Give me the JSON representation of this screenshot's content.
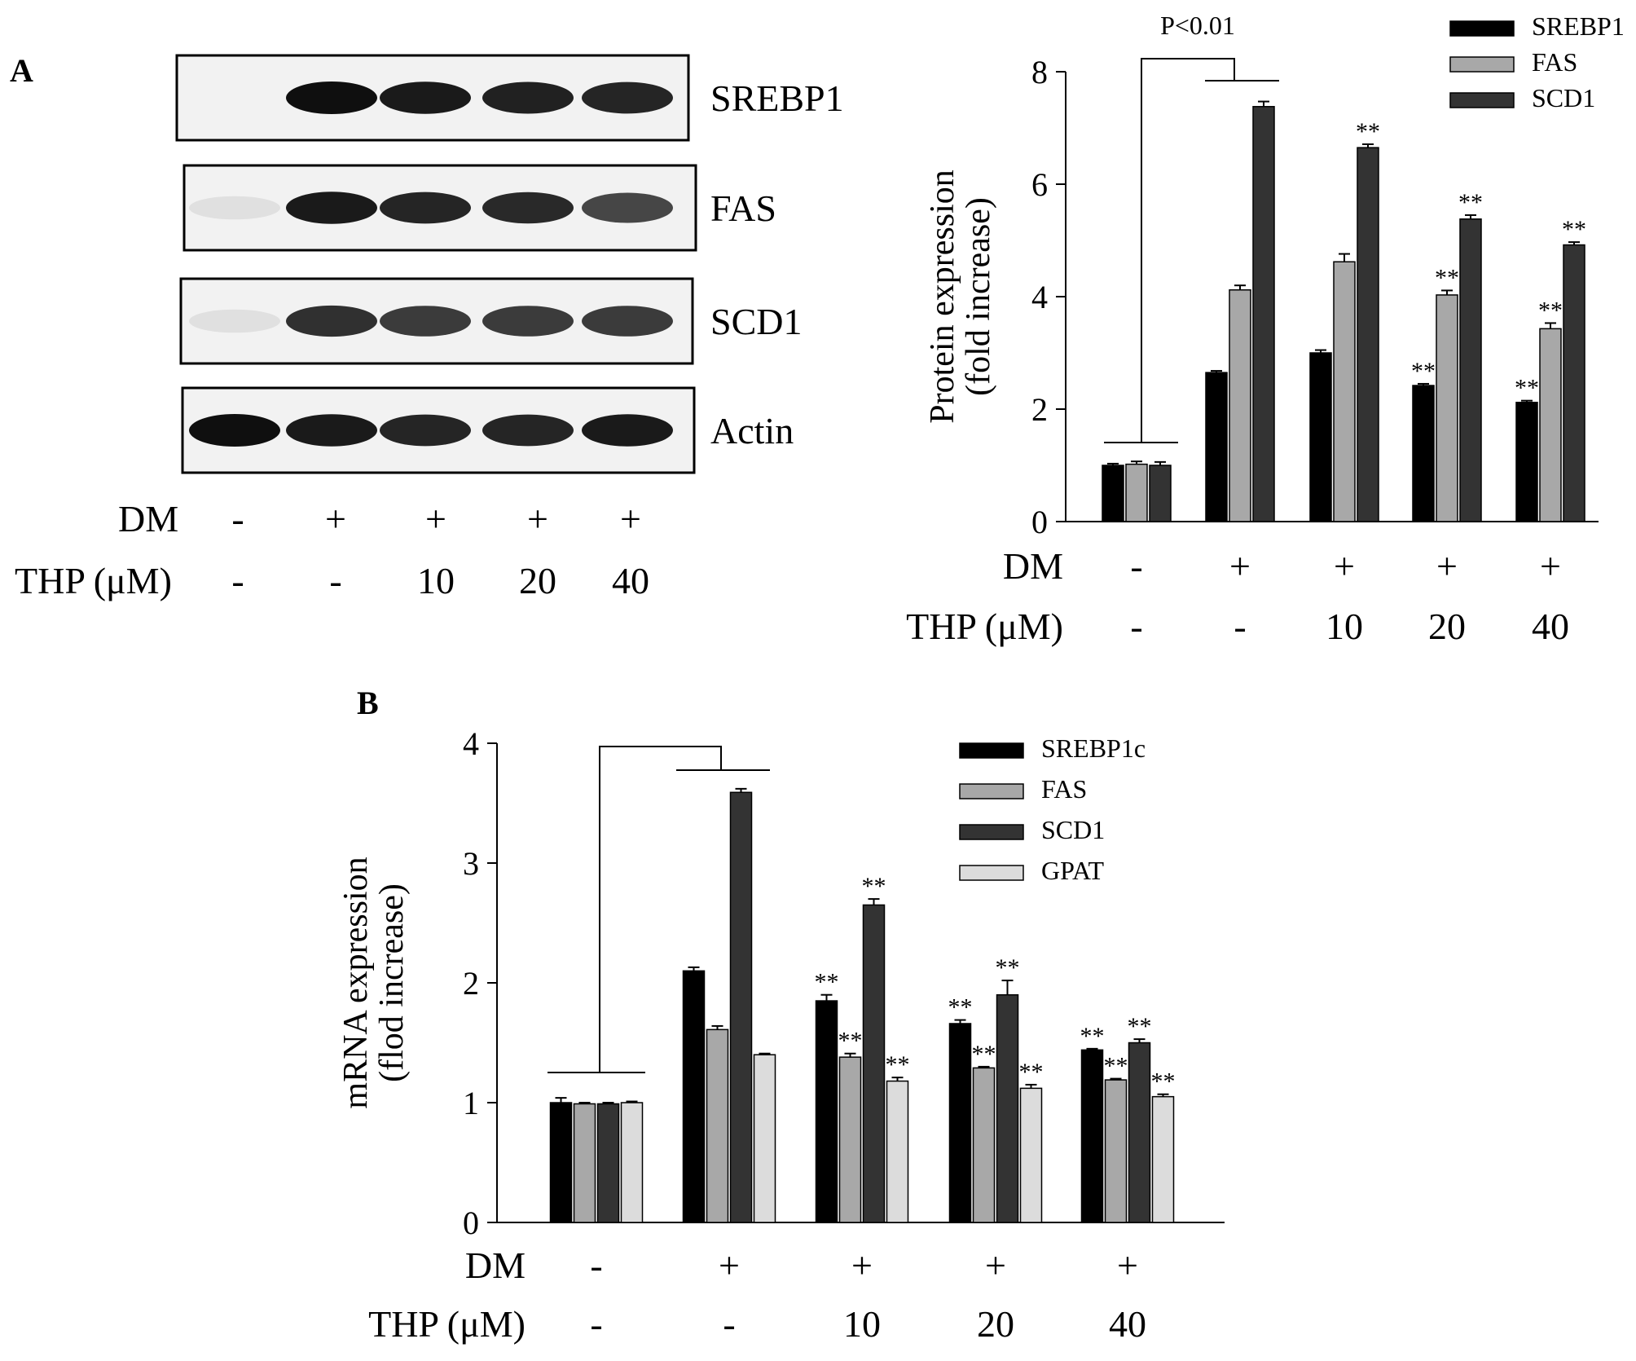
{
  "panels": {
    "a_label": "A",
    "b_label": "B"
  },
  "blot": {
    "rows": [
      {
        "name": "SREBP1",
        "intensity": [
          0.0,
          1.0,
          0.95,
          0.92,
          0.9
        ]
      },
      {
        "name": "FAS",
        "intensity": [
          0.05,
          0.95,
          0.9,
          0.88,
          0.75
        ]
      },
      {
        "name": "SCD1",
        "intensity": [
          0.05,
          0.85,
          0.8,
          0.8,
          0.8
        ]
      },
      {
        "name": "Actin",
        "intensity": [
          1.0,
          0.95,
          0.9,
          0.9,
          0.95
        ]
      }
    ],
    "conditions": {
      "dm_label": "DM",
      "dm": [
        "-",
        "+",
        "+",
        "+",
        "+"
      ],
      "thp_label": "THP (μM)",
      "thp": [
        "-",
        "-",
        "10",
        "20",
        "40"
      ]
    }
  },
  "chart_data": [
    {
      "type": "bar",
      "panel": "A",
      "title": "",
      "xlabel": "",
      "ylabel": "Protein expression\n(fold increase)",
      "ylabel_lines": [
        "Protein expression",
        "(fold increase)"
      ],
      "ylim": [
        0,
        8
      ],
      "yticks": [
        "0",
        "2",
        "4",
        "6",
        "8"
      ],
      "categories": [
        "-/-",
        "+/-",
        "+/10",
        "+/20",
        "+/40"
      ],
      "dm_label": "DM",
      "dm": [
        "-",
        "+",
        "+",
        "+",
        "+"
      ],
      "thp_label": "THP (μM)",
      "thp": [
        "-",
        "-",
        "10",
        "20",
        "40"
      ],
      "series": [
        {
          "name": "SREBP1",
          "values": [
            1.0,
            2.65,
            3.0,
            2.42,
            2.12
          ],
          "errors": [
            0.03,
            0.03,
            0.05,
            0.03,
            0.03
          ],
          "color": "#000000",
          "sig": [
            "",
            "",
            "",
            "**",
            "**"
          ]
        },
        {
          "name": "FAS",
          "values": [
            1.02,
            4.12,
            4.62,
            4.03,
            3.43
          ],
          "errors": [
            0.05,
            0.08,
            0.14,
            0.08,
            0.1
          ],
          "color": "#a8a8a8",
          "sig": [
            "",
            "",
            "",
            "**",
            "**"
          ]
        },
        {
          "name": "SCD1",
          "values": [
            1.0,
            7.38,
            6.65,
            5.38,
            4.92
          ],
          "errors": [
            0.06,
            0.09,
            0.06,
            0.07,
            0.05
          ],
          "color": "#333333",
          "sig": [
            "",
            "",
            "**",
            "**",
            "**"
          ]
        }
      ],
      "annotation": "P<0.01",
      "legend_position": "top-right",
      "grid": false
    },
    {
      "type": "bar",
      "panel": "B",
      "title": "",
      "xlabel": "",
      "ylabel": "mRNA expression\n(flod increase)",
      "ylabel_lines": [
        "mRNA expression",
        "(flod increase)"
      ],
      "ylim": [
        0,
        4
      ],
      "yticks": [
        "0",
        "1",
        "2",
        "3",
        "4"
      ],
      "categories": [
        "-/-",
        "+/-",
        "+/10",
        "+/20",
        "+/40"
      ],
      "dm_label": "DM",
      "dm": [
        "-",
        "+",
        "+",
        "+",
        "+"
      ],
      "thp_label": "THP (μM)",
      "thp": [
        "-",
        "-",
        "10",
        "20",
        "40"
      ],
      "series": [
        {
          "name": "SREBP1c",
          "values": [
            1.0,
            2.1,
            1.85,
            1.66,
            1.44
          ],
          "errors": [
            0.04,
            0.03,
            0.05,
            0.03,
            0.01
          ],
          "color": "#000000",
          "sig": [
            "",
            "",
            "**",
            "**",
            "**"
          ]
        },
        {
          "name": "FAS",
          "values": [
            0.99,
            1.61,
            1.38,
            1.29,
            1.19
          ],
          "errors": [
            0.01,
            0.03,
            0.03,
            0.01,
            0.01
          ],
          "color": "#a8a8a8",
          "sig": [
            "",
            "",
            "**",
            "**",
            "**"
          ]
        },
        {
          "name": "SCD1",
          "values": [
            0.99,
            3.59,
            2.65,
            1.9,
            1.5
          ],
          "errors": [
            0.01,
            0.03,
            0.05,
            0.12,
            0.03
          ],
          "color": "#333333",
          "sig": [
            "",
            "",
            "**",
            "**",
            "**"
          ]
        },
        {
          "name": "GPAT",
          "values": [
            1.0,
            1.4,
            1.18,
            1.12,
            1.05
          ],
          "errors": [
            0.01,
            0.01,
            0.03,
            0.03,
            0.02
          ],
          "color": "#dcdcdc",
          "sig": [
            "",
            "",
            "**",
            "**",
            "**"
          ]
        }
      ],
      "legend_position": "top-right",
      "grid": false
    }
  ]
}
